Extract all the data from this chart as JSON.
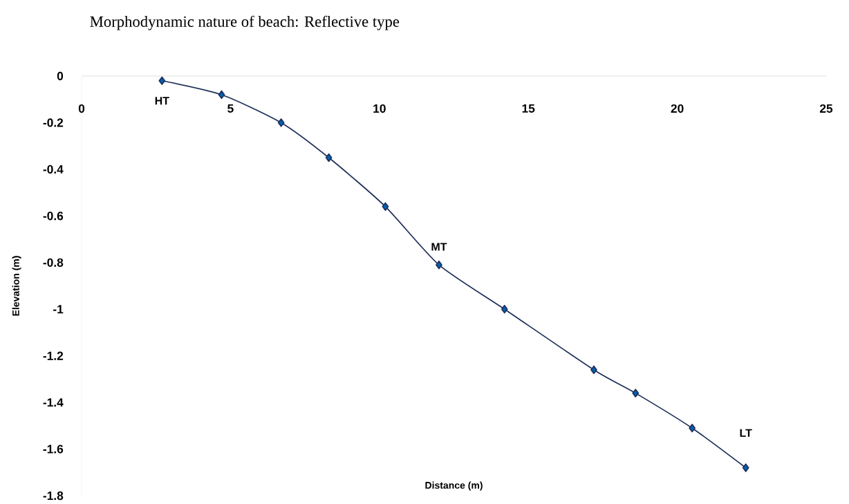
{
  "chart_data": {
    "type": "line",
    "title": "Morphodynamic nature of beach: Reflective type",
    "xlabel": "Distance (m)",
    "ylabel": "Elevation (m)",
    "x": [
      2.7,
      4.7,
      6.7,
      8.3,
      10.2,
      12.0,
      14.2,
      17.2,
      18.6,
      20.5,
      22.3
    ],
    "series": [
      {
        "color": "#1f2f5a",
        "values": [
          -0.02,
          -0.08,
          -0.2,
          -0.35,
          -0.56,
          -0.81,
          -1.0,
          -1.26,
          -1.36,
          -1.51,
          -1.68
        ]
      }
    ],
    "marker": "diamond",
    "line_style": "solid",
    "grid": false,
    "xlim": [
      0,
      25
    ],
    "ylim": [
      -1.8,
      0
    ],
    "xticks": [
      0,
      5,
      10,
      15,
      20,
      25
    ],
    "yticks": [
      0,
      -0.2,
      -0.4,
      -0.6,
      -0.8,
      -1,
      -1.2,
      -1.4,
      -1.6,
      -1.8
    ],
    "annotations": [
      {
        "text": "HT",
        "x": 2.7,
        "y": -0.02
      },
      {
        "text": "MT",
        "x": 12.0,
        "y": -0.81
      },
      {
        "text": "LT",
        "x": 22.3,
        "y": -1.68
      }
    ]
  }
}
